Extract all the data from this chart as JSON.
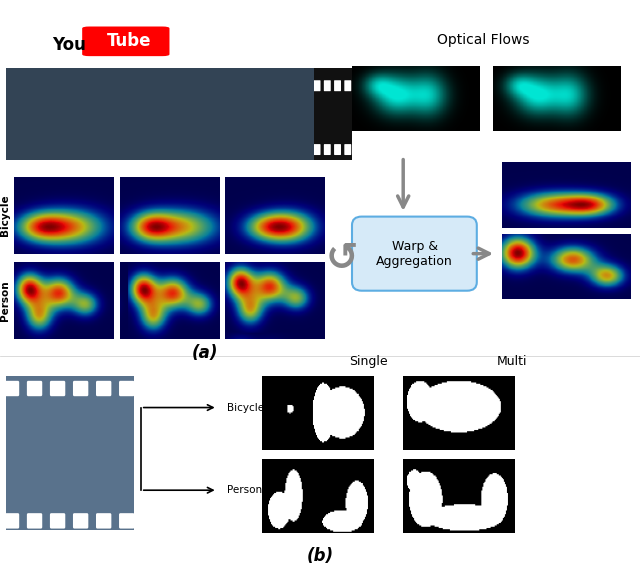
{
  "title_a": "(a)",
  "title_b": "(b)",
  "youtube_text": "You",
  "youtube_tube": "Tube",
  "optical_flows_label": "Optical Flows",
  "warp_label": "Warp &\nAggregation",
  "bicycle_label": "Bicycle",
  "person_label": "Person",
  "single_label": "Single",
  "multi_label": "Multi",
  "bicycle_label_b": "Bicycle",
  "person_label_b": "Person",
  "bg_color": "#ffffff",
  "film_color": "#111111",
  "film_hole_color": "#ffffff",
  "warp_box_color": "#aed6f1",
  "warp_box_edge": "#5dade2",
  "arrow_color": "#aaaaaa",
  "heatmap_cmap": "jet",
  "optical_bg": "#000000",
  "optical_cyan": "#00e5d4"
}
